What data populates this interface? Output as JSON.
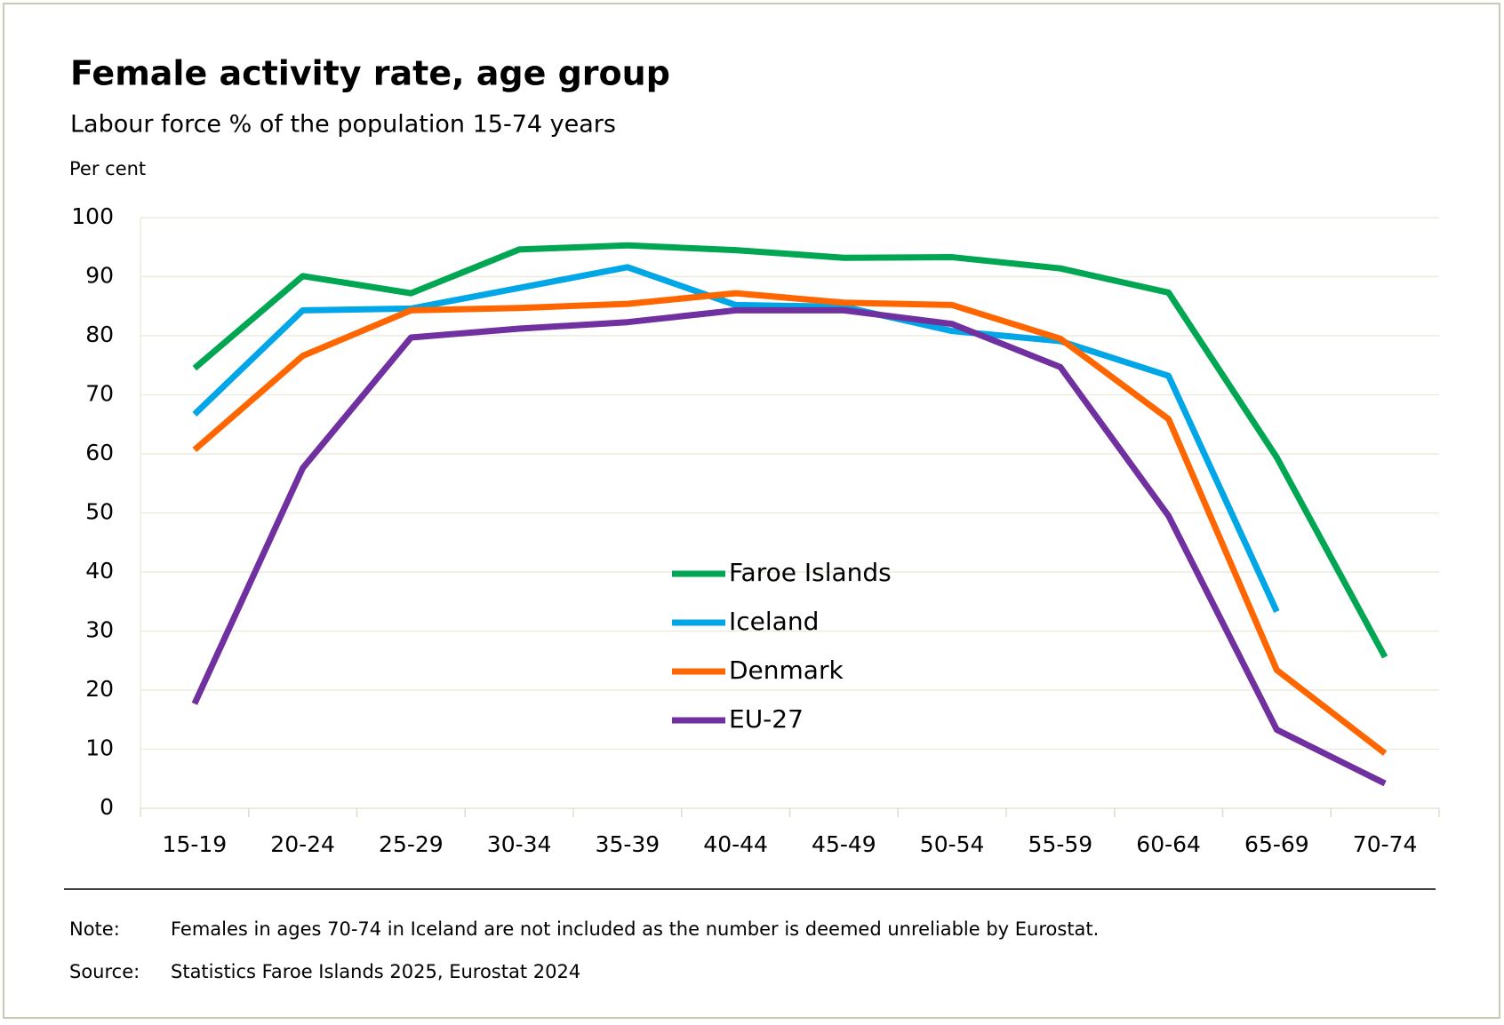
{
  "chart_data": {
    "type": "line",
    "title": "Female activity rate, age group",
    "subtitle": "Labour force % of the population 15-74 years",
    "y_label": "Per cent",
    "categories": [
      "15-19",
      "20-24",
      "25-29",
      "30-34",
      "35-39",
      "40-44",
      "45-49",
      "50-54",
      "55-59",
      "60-64",
      "65-69",
      "70-74"
    ],
    "series": [
      {
        "name": "Faroe Islands",
        "color": "#00a651",
        "values": [
          74.5,
          90.1,
          87.2,
          94.6,
          95.3,
          94.5,
          93.2,
          93.3,
          91.4,
          87.3,
          59.4,
          25.6
        ]
      },
      {
        "name": "Iceland",
        "color": "#00a6e6",
        "values": [
          66.7,
          84.3,
          84.6,
          88.1,
          91.6,
          85.2,
          84.9,
          80.8,
          79.1,
          73.2,
          33.3,
          null
        ]
      },
      {
        "name": "Denmark",
        "color": "#ff6600",
        "values": [
          60.7,
          76.6,
          84.3,
          84.7,
          85.4,
          87.2,
          85.6,
          85.2,
          79.5,
          65.9,
          23.4,
          9.3
        ]
      },
      {
        "name": "EU-27",
        "color": "#7030a0",
        "values": [
          17.7,
          57.6,
          79.7,
          81.2,
          82.3,
          84.3,
          84.3,
          82.0,
          74.7,
          49.5,
          13.3,
          4.2
        ]
      }
    ],
    "ylim": [
      0,
      100
    ],
    "yticks": [
      0,
      10,
      20,
      30,
      40,
      50,
      60,
      70,
      80,
      90,
      100
    ],
    "grid": true,
    "note_label": "Note:",
    "note": "Females in ages 70-74 in Iceland are not included as the number is deemed unreliable by Eurostat.",
    "source_label": "Source:",
    "source": "Statistics Faroe Islands 2025, Eurostat 2024"
  }
}
